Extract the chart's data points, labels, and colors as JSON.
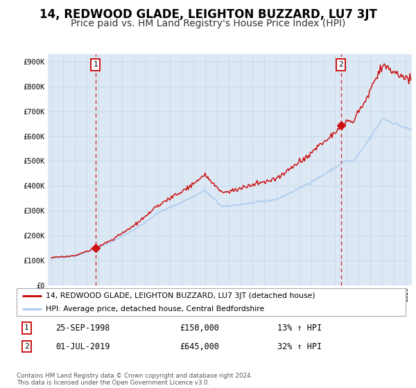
{
  "title": "14, REDWOOD GLADE, LEIGHTON BUZZARD, LU7 3JT",
  "subtitle": "Price paid vs. HM Land Registry's House Price Index (HPI)",
  "legend_line1": "14, REDWOOD GLADE, LEIGHTON BUZZARD, LU7 3JT (detached house)",
  "legend_line2": "HPI: Average price, detached house, Central Bedfordshire",
  "transaction1_date": "25-SEP-1998",
  "transaction1_price": "£150,000",
  "transaction1_hpi": "13% ↑ HPI",
  "transaction1_year": 1998.73,
  "transaction1_value": 150000,
  "transaction2_date": "01-JUL-2019",
  "transaction2_price": "£645,000",
  "transaction2_hpi": "32% ↑ HPI",
  "transaction2_year": 2019.5,
  "transaction2_value": 645000,
  "ylim": [
    0,
    930000
  ],
  "xlim_start": 1994.7,
  "xlim_end": 2025.5,
  "yticks": [
    0,
    100000,
    200000,
    300000,
    400000,
    500000,
    600000,
    700000,
    800000,
    900000
  ],
  "ytick_labels": [
    "£0",
    "£100K",
    "£200K",
    "£300K",
    "£400K",
    "£500K",
    "£600K",
    "£700K",
    "£800K",
    "£900K"
  ],
  "plot_bg_color": "#dce9f5",
  "hpi_line_color": "#aacbee",
  "price_line_color": "#cc1111",
  "vline_color": "#cc1111",
  "footer_text": "Contains HM Land Registry data © Crown copyright and database right 2024.\nThis data is licensed under the Open Government Licence v3.0.",
  "title_fontsize": 12,
  "subtitle_fontsize": 10
}
